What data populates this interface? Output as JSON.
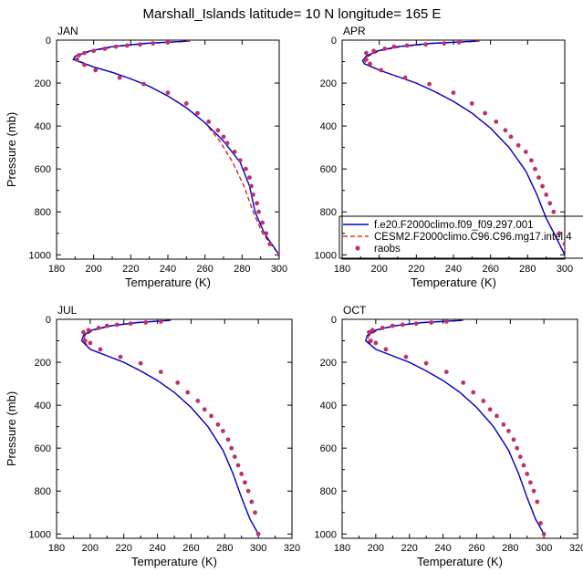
{
  "title": "Marshall_Islands  latitude= 10 N longitude= 165 E",
  "colors": {
    "model1": "#0000cc",
    "model2": "#dd0000",
    "raobs": "#c0306a"
  },
  "legend": {
    "entries": [
      "f.e20.F2000climo.f09_f09.297.001",
      "CESM2.F2000climo.C96.C96.mg17.intel.4",
      "raobs"
    ]
  },
  "chart_data": [
    {
      "type": "line",
      "panel": "JAN",
      "xlabel": "Temperature (K)",
      "ylabel": "Pressure (mb)",
      "xlim": [
        180,
        300
      ],
      "ylim": [
        1020,
        0
      ],
      "xticks": [
        "180",
        "200",
        "220",
        "240",
        "260",
        "280",
        "300"
      ],
      "yticks": [
        "0",
        "200",
        "400",
        "600",
        "800",
        "1000"
      ],
      "series": [
        {
          "name": "f.e20.F2000climo.f09_f09.297.001",
          "x": [
            250,
            228,
            210,
            198,
            190,
            189,
            200,
            210,
            220,
            230,
            240,
            250,
            260,
            270,
            279,
            284,
            287,
            292,
            300
          ],
          "y": [
            5,
            15,
            30,
            50,
            75,
            90,
            125,
            150,
            180,
            215,
            260,
            315,
            385,
            470,
            570,
            680,
            800,
            900,
            1000
          ]
        },
        {
          "name": "CESM2.F2000climo.C96.C96.mg17.intel.4",
          "x": [
            252,
            230,
            212,
            199,
            191,
            190,
            200,
            210,
            220,
            230,
            240,
            250,
            260,
            268,
            275,
            281,
            286,
            291,
            300
          ],
          "y": [
            5,
            15,
            30,
            50,
            75,
            90,
            125,
            150,
            180,
            215,
            260,
            315,
            385,
            470,
            570,
            680,
            800,
            900,
            1000
          ]
        },
        {
          "name": "raobs",
          "x": [
            240,
            232,
            225,
            218,
            212,
            206,
            200,
            195,
            192,
            191,
            195,
            201,
            214,
            227,
            240,
            250,
            256,
            262,
            267,
            270,
            272,
            276,
            279,
            282,
            284,
            285,
            286,
            288,
            289,
            291,
            293,
            295,
            300
          ],
          "y": [
            10,
            15,
            20,
            25,
            30,
            40,
            50,
            60,
            70,
            90,
            115,
            140,
            175,
            205,
            245,
            295,
            340,
            380,
            420,
            450,
            480,
            520,
            560,
            600,
            640,
            680,
            720,
            760,
            800,
            850,
            900,
            950,
            1000
          ]
        }
      ]
    },
    {
      "type": "line",
      "panel": "APR",
      "xlabel": "Temperature (K)",
      "ylabel": "",
      "xlim": [
        180,
        300
      ],
      "ylim": [
        1020,
        0
      ],
      "xticks": [
        "180",
        "200",
        "220",
        "240",
        "260",
        "280",
        "300"
      ],
      "yticks": [
        "0",
        "200",
        "400",
        "600",
        "800",
        "1000"
      ],
      "series": [
        {
          "name": "f.e20.F2000climo.f09_f09.297.001",
          "x": [
            252,
            228,
            210,
            199,
            193,
            191,
            192,
            200,
            210,
            220,
            230,
            240,
            250,
            260,
            270,
            279,
            285,
            290,
            296,
            300
          ],
          "y": [
            5,
            15,
            30,
            50,
            75,
            95,
            110,
            140,
            170,
            200,
            240,
            285,
            340,
            410,
            500,
            610,
            720,
            830,
            930,
            1000
          ]
        },
        {
          "name": "CESM2.F2000climo.C96.C96.mg17.intel.4",
          "x": [
            254,
            230,
            212,
            200,
            194,
            192,
            193,
            200,
            210,
            220,
            230,
            240,
            250,
            260,
            270,
            279,
            285,
            290,
            296,
            300
          ],
          "y": [
            5,
            15,
            30,
            50,
            75,
            95,
            110,
            140,
            170,
            200,
            240,
            285,
            340,
            410,
            500,
            610,
            720,
            830,
            930,
            1000
          ]
        },
        {
          "name": "raobs",
          "x": [
            243,
            235,
            225,
            215,
            208,
            203,
            197,
            193,
            193,
            195,
            201,
            214,
            227,
            240,
            250,
            257,
            263,
            268,
            271,
            275,
            279,
            282,
            284,
            286,
            288,
            290,
            292,
            294,
            297,
            300
          ],
          "y": [
            10,
            15,
            20,
            25,
            30,
            40,
            50,
            60,
            90,
            110,
            140,
            175,
            205,
            245,
            295,
            340,
            380,
            420,
            450,
            490,
            520,
            560,
            600,
            640,
            680,
            720,
            760,
            800,
            900,
            950
          ]
        }
      ]
    },
    {
      "type": "line",
      "panel": "JUL",
      "xlabel": "Temperature (K)",
      "ylabel": "Pressure (mb)",
      "xlim": [
        180,
        320
      ],
      "ylim": [
        1020,
        0
      ],
      "xticks": [
        "180",
        "200",
        "220",
        "240",
        "260",
        "280",
        "300",
        "320"
      ],
      "yticks": [
        "0",
        "200",
        "400",
        "600",
        "800",
        "1000"
      ],
      "series": [
        {
          "name": "f.e20.F2000climo.f09_f09.297.001",
          "x": [
            247,
            228,
            212,
            201,
            196,
            195,
            200,
            210,
            220,
            230,
            240,
            250,
            260,
            270,
            279,
            285,
            290,
            295,
            300
          ],
          "y": [
            5,
            15,
            30,
            50,
            75,
            100,
            140,
            170,
            200,
            240,
            285,
            340,
            410,
            500,
            610,
            720,
            830,
            930,
            1000
          ]
        },
        {
          "name": "CESM2.F2000climo.C96.C96.mg17.intel.4",
          "x": [
            248,
            229,
            213,
            202,
            197,
            196,
            200,
            210,
            220,
            230,
            240,
            250,
            260,
            270,
            279,
            285,
            290,
            295,
            300
          ],
          "y": [
            5,
            15,
            30,
            50,
            75,
            100,
            140,
            170,
            200,
            240,
            285,
            340,
            410,
            500,
            610,
            720,
            830,
            930,
            1000
          ]
        },
        {
          "name": "raobs",
          "x": [
            242,
            233,
            224,
            216,
            210,
            205,
            199,
            196,
            197,
            200,
            206,
            218,
            230,
            242,
            252,
            258,
            264,
            268,
            272,
            276,
            279,
            282,
            284,
            286,
            288,
            290,
            292,
            294,
            296,
            298,
            300
          ],
          "y": [
            10,
            15,
            20,
            25,
            30,
            40,
            50,
            60,
            100,
            110,
            140,
            175,
            205,
            245,
            295,
            340,
            380,
            420,
            450,
            490,
            520,
            560,
            600,
            640,
            680,
            720,
            760,
            800,
            850,
            900,
            1000
          ]
        }
      ]
    },
    {
      "type": "line",
      "panel": "OCT",
      "xlabel": "Temperature (K)",
      "ylabel": "",
      "xlim": [
        180,
        320
      ],
      "ylim": [
        1020,
        0
      ],
      "xticks": [
        "180",
        "200",
        "220",
        "240",
        "260",
        "280",
        "300",
        "320"
      ],
      "yticks": [
        "0",
        "200",
        "400",
        "600",
        "800",
        "1000"
      ],
      "series": [
        {
          "name": "f.e20.F2000climo.f09_f09.297.001",
          "x": [
            251,
            228,
            211,
            200,
            195,
            194,
            200,
            210,
            220,
            230,
            240,
            250,
            260,
            270,
            279,
            285,
            290,
            295,
            300
          ],
          "y": [
            5,
            15,
            30,
            50,
            75,
            100,
            140,
            170,
            200,
            240,
            285,
            340,
            410,
            500,
            610,
            720,
            830,
            930,
            1000
          ]
        },
        {
          "name": "CESM2.F2000climo.C96.C96.mg17.intel.4",
          "x": [
            252,
            229,
            212,
            201,
            196,
            195,
            200,
            210,
            220,
            230,
            240,
            250,
            260,
            270,
            279,
            285,
            290,
            295,
            300
          ],
          "y": [
            5,
            15,
            30,
            50,
            75,
            100,
            140,
            170,
            200,
            240,
            285,
            340,
            410,
            500,
            610,
            720,
            830,
            930,
            1000
          ]
        },
        {
          "name": "raobs",
          "x": [
            242,
            233,
            224,
            216,
            210,
            204,
            198,
            196,
            197,
            200,
            206,
            218,
            230,
            242,
            252,
            258,
            264,
            268,
            272,
            276,
            279,
            282,
            284,
            286,
            288,
            290,
            292,
            294,
            296,
            298,
            300
          ],
          "y": [
            10,
            15,
            20,
            25,
            30,
            40,
            50,
            60,
            100,
            110,
            140,
            175,
            205,
            245,
            295,
            340,
            380,
            420,
            450,
            490,
            520,
            560,
            600,
            640,
            680,
            720,
            760,
            800,
            850,
            950,
            1000
          ]
        }
      ]
    }
  ]
}
